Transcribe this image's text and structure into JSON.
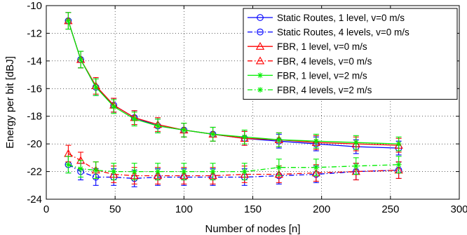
{
  "chart_data": {
    "type": "line",
    "title": "",
    "xlabel": "Number of nodes [n]",
    "ylabel": "Energy per bit [dBJ]",
    "xlim": [
      0,
      300
    ],
    "ylim": [
      -24,
      -10
    ],
    "x_ticks": [
      "0",
      "50",
      "100",
      "150",
      "200",
      "250",
      "300"
    ],
    "y_ticks": [
      "-10",
      "-12",
      "-14",
      "-16",
      "-18",
      "-20",
      "-22",
      "-24"
    ],
    "grid": true,
    "legend_position": "top-right",
    "x": [
      16,
      25,
      36,
      49,
      64,
      81,
      100,
      121,
      144,
      169,
      196,
      225,
      256
    ],
    "series": [
      {
        "name": "Static Routes, 1 level, v=0 m/s",
        "color": "#0000ff",
        "line_style": "solid",
        "marker": "circle",
        "values": [
          -11.1,
          -13.9,
          -15.9,
          -17.2,
          -18.1,
          -18.7,
          -19.0,
          -19.3,
          -19.6,
          -19.8,
          -20.0,
          -20.2,
          -20.3
        ],
        "errors": [
          0.6,
          0.6,
          0.6,
          0.5,
          0.5,
          0.5,
          0.5,
          0.5,
          0.5,
          0.5,
          0.5,
          0.5,
          0.5
        ]
      },
      {
        "name": "Static Routes, 4 levels, v=0 m/s",
        "color": "#0000ff",
        "line_style": "dashdot",
        "marker": "circle",
        "values": [
          -21.5,
          -22.0,
          -22.4,
          -22.4,
          -22.5,
          -22.4,
          -22.4,
          -22.4,
          -22.4,
          -22.3,
          -22.2,
          -22.0,
          -21.9
        ],
        "errors": [
          0.6,
          0.6,
          0.6,
          0.6,
          0.6,
          0.6,
          0.6,
          0.6,
          0.6,
          0.6,
          0.6,
          0.6,
          0.6
        ]
      },
      {
        "name": "FBR, 1 level, v=0 m/s",
        "color": "#ff0000",
        "line_style": "solid",
        "marker": "triangle",
        "values": [
          -11.1,
          -13.9,
          -15.8,
          -17.2,
          -18.1,
          -18.6,
          -19.0,
          -19.3,
          -19.6,
          -19.7,
          -19.9,
          -20.0,
          -20.1
        ],
        "errors": [
          0.6,
          0.6,
          0.6,
          0.5,
          0.5,
          0.5,
          0.5,
          0.5,
          0.5,
          0.5,
          0.5,
          0.5,
          0.5
        ]
      },
      {
        "name": "FBR, 4 levels, v=0 m/s",
        "color": "#ff0000",
        "line_style": "dashdot",
        "marker": "triangle",
        "values": [
          -20.7,
          -21.2,
          -21.9,
          -22.2,
          -22.3,
          -22.3,
          -22.3,
          -22.3,
          -22.2,
          -22.2,
          -22.1,
          -22.0,
          -21.9
        ],
        "errors": [
          0.6,
          0.6,
          0.6,
          0.6,
          0.6,
          0.6,
          0.6,
          0.6,
          0.6,
          0.6,
          0.6,
          0.6,
          0.6
        ]
      },
      {
        "name": "FBR, 1 level, v=2 m/s",
        "color": "#00ee00",
        "line_style": "solid",
        "marker": "star",
        "values": [
          -11.1,
          -13.9,
          -15.9,
          -17.3,
          -18.2,
          -18.7,
          -19.0,
          -19.3,
          -19.5,
          -19.7,
          -19.8,
          -19.9,
          -20.0
        ],
        "errors": [
          0.6,
          0.6,
          0.6,
          0.5,
          0.5,
          0.5,
          0.5,
          0.5,
          0.5,
          0.5,
          0.5,
          0.5,
          0.5
        ]
      },
      {
        "name": "FBR, 4 levels, v=2 m/s",
        "color": "#00ee00",
        "line_style": "dashdot",
        "marker": "star",
        "values": [
          -21.5,
          -21.8,
          -21.9,
          -22.0,
          -22.0,
          -22.0,
          -22.0,
          -22.0,
          -22.0,
          -21.7,
          -21.7,
          -21.6,
          -21.5
        ],
        "errors": [
          0.6,
          0.6,
          0.6,
          0.6,
          0.6,
          0.6,
          0.6,
          0.6,
          0.6,
          0.6,
          0.6,
          0.6,
          0.6
        ]
      }
    ]
  }
}
